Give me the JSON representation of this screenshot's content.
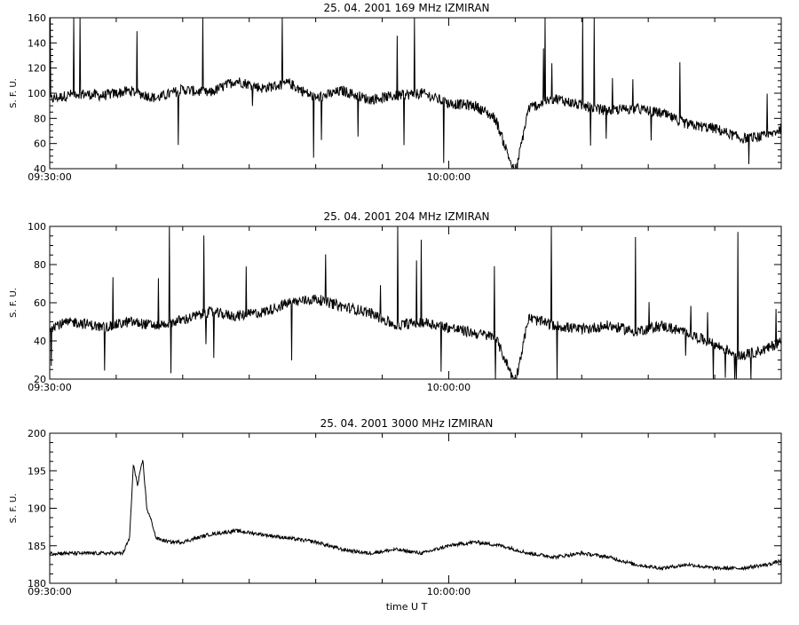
{
  "chart_data": [
    {
      "type": "line",
      "title": "25. 04. 2001   169 MHz   IZMIRAN",
      "ylabel": "S. F. U.",
      "xlabel": "",
      "ylim": [
        40,
        160
      ],
      "yticks": [
        40,
        60,
        80,
        100,
        120,
        140,
        160
      ],
      "x_range_minutes": [
        0,
        55
      ],
      "x_tick_labels": [
        {
          "t": 0,
          "label": "09:30:00"
        },
        {
          "t": 30,
          "label": "10:00:00"
        }
      ],
      "series": [
        {
          "t": [
            0,
            2,
            4,
            6,
            8,
            10,
            12,
            14,
            16,
            18,
            20,
            22,
            24,
            26,
            28,
            30,
            32,
            33.5,
            35,
            36,
            38,
            40,
            42,
            44,
            46,
            48,
            50,
            52,
            54,
            55
          ],
          "values": [
            95,
            100,
            98,
            102,
            96,
            103,
            100,
            110,
            104,
            108,
            96,
            102,
            95,
            98,
            100,
            92,
            90,
            80,
            35,
            88,
            96,
            90,
            86,
            88,
            84,
            75,
            72,
            64,
            66,
            72
          ]
        }
      ]
    },
    {
      "type": "line",
      "title": "25. 04. 2001   204 MHz   IZMIRAN",
      "ylabel": "S. F. U.",
      "xlabel": "",
      "ylim": [
        20,
        100
      ],
      "yticks": [
        20,
        40,
        60,
        80,
        100
      ],
      "x_range_minutes": [
        0,
        55
      ],
      "x_tick_labels": [
        {
          "t": 0,
          "label": "09:30:00"
        },
        {
          "t": 30,
          "label": "10:00:00"
        }
      ],
      "series": [
        {
          "t": [
            0,
            2,
            4,
            6,
            8,
            10,
            12,
            14,
            16,
            18,
            20,
            22,
            24,
            26,
            28,
            30,
            32,
            33.5,
            35,
            36,
            38,
            40,
            42,
            44,
            46,
            48,
            50,
            52,
            54,
            55
          ],
          "values": [
            48,
            50,
            47,
            50,
            48,
            51,
            55,
            53,
            55,
            60,
            62,
            58,
            55,
            48,
            50,
            47,
            44,
            42,
            18,
            52,
            48,
            46,
            48,
            45,
            48,
            44,
            38,
            32,
            36,
            40
          ]
        }
      ]
    },
    {
      "type": "line",
      "title": "25. 04. 2001   3000 MHz   IZMIRAN",
      "ylabel": "S. F. U.",
      "xlabel": "time  U T",
      "ylim": [
        180,
        200
      ],
      "yticks": [
        180,
        185,
        190,
        195,
        200
      ],
      "x_range_minutes": [
        0,
        55
      ],
      "x_tick_labels": [
        {
          "t": 0,
          "label": "09:30:00"
        },
        {
          "t": 30,
          "label": "10:00:00"
        }
      ],
      "series": [
        {
          "t": [
            0,
            2,
            4,
            5.5,
            6,
            6.3,
            6.6,
            7,
            7.3,
            7.7,
            8,
            9,
            10,
            12,
            14,
            16,
            18,
            20,
            22,
            24,
            26,
            28,
            30,
            32,
            34,
            36,
            38,
            40,
            42,
            44,
            46,
            48,
            50,
            52,
            54,
            55
          ],
          "values": [
            184,
            184,
            184,
            184,
            186,
            196,
            193,
            196.5,
            190,
            188,
            186,
            185.5,
            185.5,
            186.5,
            187,
            186.5,
            186,
            185.5,
            184.5,
            184,
            184.5,
            184,
            185,
            185.5,
            185,
            184,
            183.5,
            184,
            183.5,
            182.5,
            182,
            182.5,
            182,
            182,
            182.5,
            183
          ]
        }
      ]
    }
  ]
}
